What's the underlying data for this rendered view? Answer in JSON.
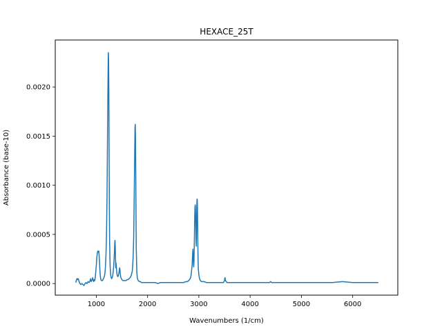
{
  "chart_data": {
    "type": "line",
    "title": "HEXACE_25T",
    "xlabel": "Wavenumbers (1/cm)",
    "ylabel": "Absorbance (base-10)",
    "xlim": [
      200,
      6880
    ],
    "ylim": [
      -0.000118,
      0.002478
    ],
    "x_ticks": [
      1000,
      2000,
      3000,
      4000,
      5000,
      6000
    ],
    "y_ticks": [
      0.0,
      0.0005,
      0.001,
      0.0015,
      0.002
    ],
    "x_tick_labels": [
      "1000",
      "2000",
      "3000",
      "4000",
      "5000",
      "6000"
    ],
    "y_tick_labels": [
      "0.0000",
      "0.0005",
      "0.0010",
      "0.0015",
      "0.0020"
    ],
    "grid": false,
    "legend": "none",
    "series": [
      {
        "color": "#1f77b4",
        "x": [
          600,
          615,
          625,
          635,
          645,
          655,
          665,
          680,
          700,
          720,
          740,
          760,
          780,
          800,
          820,
          840,
          860,
          880,
          890,
          900,
          910,
          920,
          930,
          940,
          950,
          960,
          970,
          980,
          990,
          1000,
          1010,
          1020,
          1030,
          1040,
          1050,
          1060,
          1070,
          1080,
          1090,
          1100,
          1110,
          1120,
          1130,
          1140,
          1150,
          1160,
          1170,
          1180,
          1190,
          1200,
          1210,
          1220,
          1230,
          1235,
          1240,
          1245,
          1250,
          1255,
          1260,
          1270,
          1280,
          1290,
          1300,
          1310,
          1320,
          1330,
          1340,
          1350,
          1360,
          1365,
          1370,
          1375,
          1380,
          1385,
          1390,
          1400,
          1410,
          1420,
          1430,
          1440,
          1450,
          1455,
          1460,
          1465,
          1470,
          1480,
          1490,
          1500,
          1520,
          1540,
          1560,
          1580,
          1600,
          1620,
          1640,
          1660,
          1680,
          1700,
          1710,
          1720,
          1730,
          1740,
          1750,
          1755,
          1760,
          1765,
          1770,
          1775,
          1780,
          1790,
          1800,
          1810,
          1820,
          1840,
          1860,
          1880,
          1900,
          1950,
          2000,
          2050,
          2100,
          2150,
          2200,
          2250,
          2300,
          2350,
          2400,
          2450,
          2500,
          2550,
          2600,
          2650,
          2700,
          2750,
          2780,
          2800,
          2820,
          2840,
          2850,
          2860,
          2870,
          2875,
          2880,
          2885,
          2890,
          2895,
          2900,
          2905,
          2910,
          2915,
          2920,
          2925,
          2930,
          2935,
          2940,
          2945,
          2950,
          2955,
          2960,
          2965,
          2970,
          2975,
          2980,
          2985,
          2990,
          3000,
          3010,
          3020,
          3030,
          3050,
          3080,
          3100,
          3150,
          3200,
          3300,
          3400,
          3450,
          3480,
          3500,
          3510,
          3520,
          3550,
          3600,
          3700,
          3800,
          3900,
          4000,
          4100,
          4200,
          4300,
          4350,
          4380,
          4400,
          4420,
          4500,
          4600,
          4800,
          5000,
          5200,
          5400,
          5600,
          5800,
          6000,
          6200,
          6400,
          6500
        ],
        "y": [
          1e-05,
          4e-05,
          5e-05,
          4e-05,
          5e-05,
          4e-05,
          2e-05,
          0.0,
          -1e-05,
          0.0,
          -1e-05,
          -2e-05,
          0.0,
          1e-05,
          0.0,
          2e-05,
          1e-05,
          3e-05,
          5e-05,
          2e-05,
          3e-05,
          4e-05,
          6e-05,
          3e-05,
          2e-05,
          4e-05,
          3e-05,
          6e-05,
          0.00012,
          0.00018,
          0.00026,
          0.00031,
          0.00033,
          0.00032,
          0.00033,
          0.00025,
          0.00014,
          7e-05,
          4e-05,
          3e-05,
          3e-05,
          3e-05,
          4e-05,
          5e-05,
          6e-05,
          8e-05,
          0.00011,
          0.00018,
          0.0003,
          0.00052,
          0.0009,
          0.00155,
          0.00215,
          0.00235,
          0.00228,
          0.00195,
          0.00138,
          0.0008,
          0.00042,
          0.00018,
          9e-05,
          6e-05,
          5e-05,
          6e-05,
          8e-05,
          0.00012,
          0.00018,
          0.00027,
          0.0004,
          0.00044,
          0.00038,
          0.00026,
          0.00016,
          0.00021,
          0.00018,
          0.00011,
          8e-05,
          7e-05,
          8e-05,
          0.0001,
          0.00014,
          0.00016,
          0.00015,
          0.00012,
          9e-05,
          6e-05,
          5e-05,
          4e-05,
          3e-05,
          3e-05,
          3e-05,
          3e-05,
          4e-05,
          4e-05,
          5e-05,
          6e-05,
          8e-05,
          0.00012,
          0.00018,
          0.00028,
          0.00048,
          0.0009,
          0.00135,
          0.00158,
          0.00162,
          0.00148,
          0.00112,
          0.00068,
          0.00035,
          0.00012,
          6e-05,
          4e-05,
          3e-05,
          2e-05,
          2e-05,
          1e-05,
          1e-05,
          1e-05,
          1e-05,
          1e-05,
          1e-05,
          1e-05,
          0.0,
          1e-05,
          1e-05,
          1e-05,
          1e-05,
          1e-05,
          1e-05,
          1e-05,
          1e-05,
          1e-05,
          1e-05,
          2e-05,
          2e-05,
          3e-05,
          4e-05,
          6e-05,
          9e-05,
          0.00014,
          0.00019,
          0.00026,
          0.00031,
          0.00035,
          0.00028,
          0.0002,
          0.00017,
          0.00022,
          0.00035,
          0.00052,
          0.00068,
          0.00078,
          0.0008,
          0.00074,
          0.0006,
          0.00045,
          0.00038,
          0.00055,
          0.00078,
          0.00086,
          0.00085,
          0.00068,
          0.00042,
          0.00025,
          0.00015,
          9e-05,
          6e-05,
          4e-05,
          3e-05,
          2e-05,
          2e-05,
          2e-05,
          1e-05,
          1e-05,
          1e-05,
          1e-05,
          1e-05,
          1e-05,
          3e-05,
          6e-05,
          3e-05,
          1e-05,
          1e-05,
          1e-05,
          1e-05,
          1e-05,
          1e-05,
          1e-05,
          1e-05,
          1e-05,
          1e-05,
          1e-05,
          2e-05,
          1e-05,
          1e-05,
          1e-05,
          1e-05,
          1e-05,
          1e-05,
          1e-05,
          1e-05,
          2e-05,
          1e-05,
          1e-05,
          1e-05,
          1e-05
        ]
      }
    ]
  }
}
